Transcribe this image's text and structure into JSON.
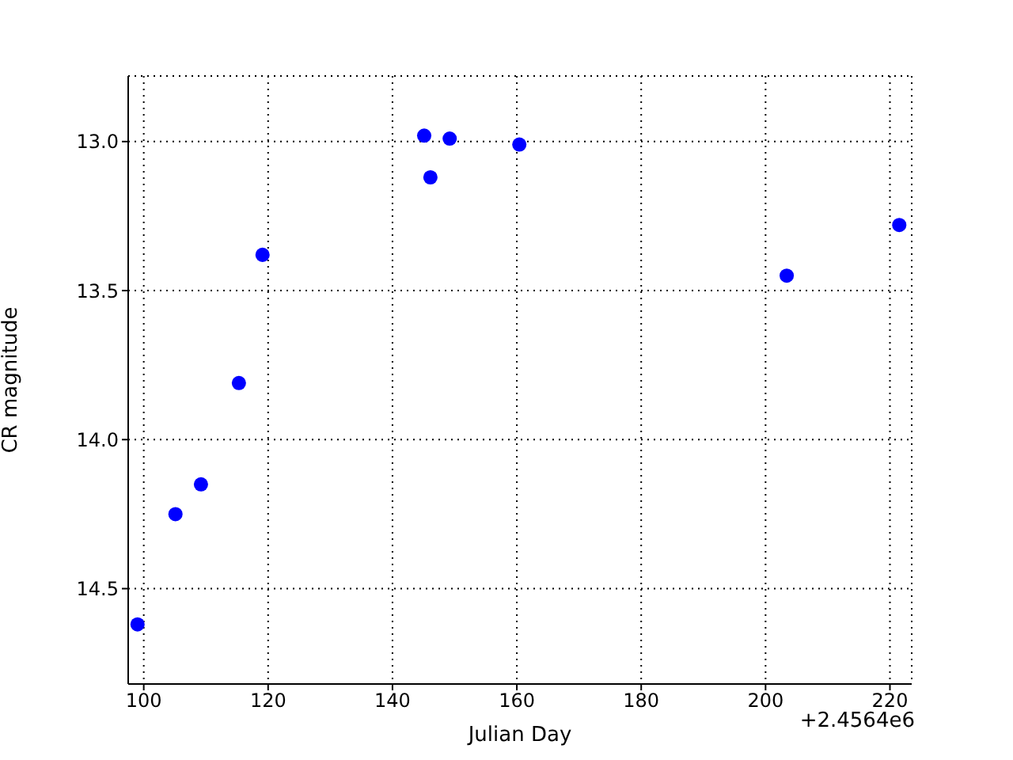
{
  "chart_data": {
    "type": "scatter",
    "xlabel": "Julian Day",
    "ylabel": "CR magnitude",
    "x": [
      99.0,
      105.1,
      109.2,
      115.3,
      119.1,
      145.1,
      146.1,
      149.2,
      160.4,
      203.4,
      221.5
    ],
    "series": [
      {
        "color": "#0000ff",
        "values": [
          14.62,
          14.25,
          14.15,
          13.81,
          13.38,
          12.98,
          13.12,
          12.99,
          13.01,
          13.45,
          13.28
        ]
      }
    ],
    "xlim": [
      97.5,
      223.5
    ],
    "xticks": [
      100,
      120,
      140,
      160,
      180,
      200,
      220
    ],
    "ylim": [
      14.82,
      12.78
    ],
    "yticks": [
      {
        "value": 13,
        "label": "13.0"
      },
      {
        "value": 13.5,
        "label": "13.5"
      },
      {
        "value": 14,
        "label": "14.0"
      },
      {
        "value": 14.5,
        "label": "14.5"
      }
    ],
    "annotations": [
      "+2.4564e6"
    ],
    "grid": true,
    "marker": "circle"
  }
}
